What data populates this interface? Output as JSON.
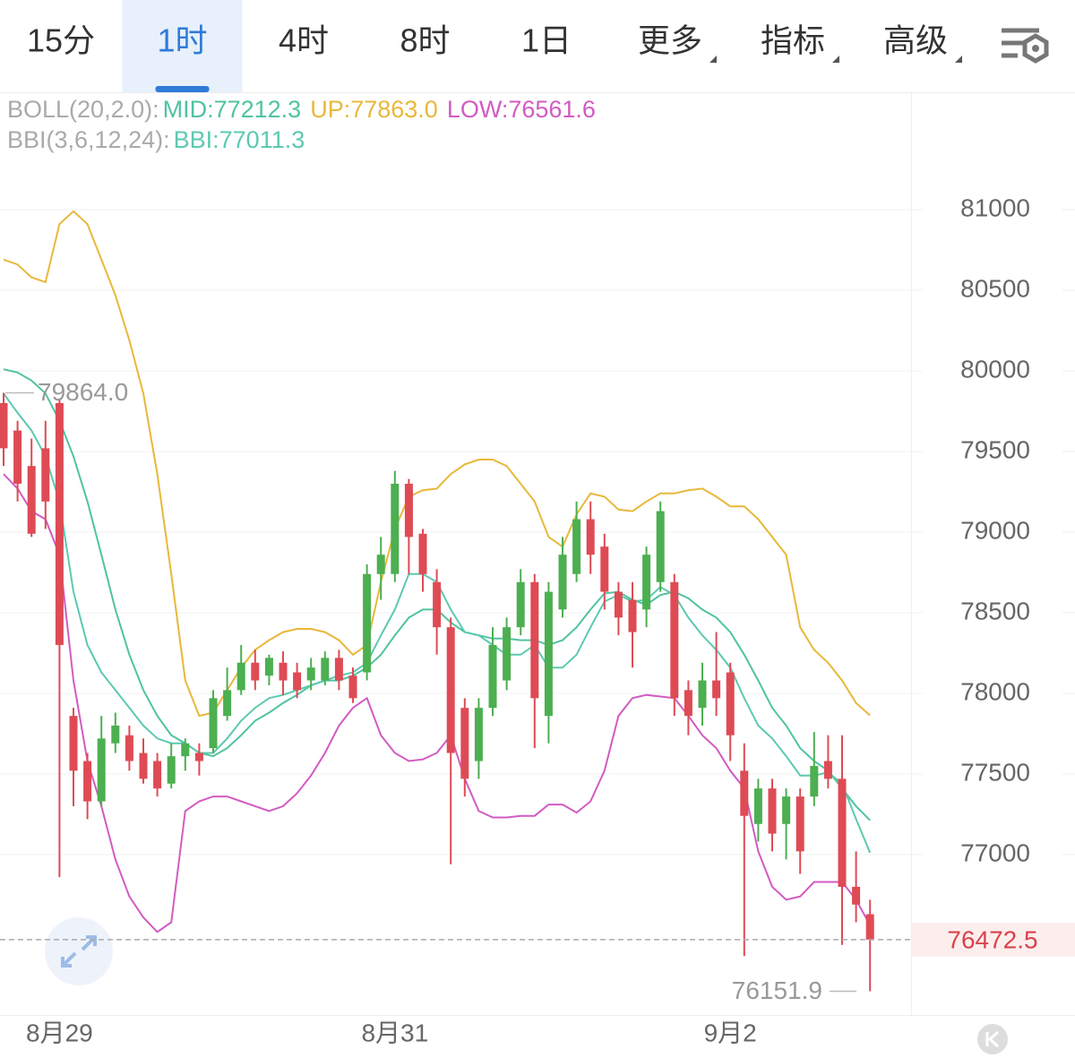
{
  "tabs": [
    {
      "label": "15分"
    },
    {
      "label": "1时",
      "active": true
    },
    {
      "label": "4时"
    },
    {
      "label": "8时"
    },
    {
      "label": "1日"
    },
    {
      "label": "更多",
      "dropdown": true
    },
    {
      "label": "指标",
      "dropdown": true
    },
    {
      "label": "高级",
      "dropdown": true
    }
  ],
  "chart_data": {
    "type": "candlestick",
    "categories": [
      null,
      null,
      null,
      null,
      "8月29",
      null,
      null,
      null,
      null,
      null,
      null,
      null,
      null,
      null,
      null,
      null,
      null,
      null,
      null,
      null,
      null,
      null,
      null,
      null,
      null,
      null,
      null,
      null,
      "8月31",
      null,
      null,
      null,
      null,
      null,
      null,
      null,
      null,
      null,
      null,
      null,
      null,
      null,
      null,
      null,
      null,
      null,
      null,
      null,
      null,
      null,
      null,
      null,
      "9月2",
      null,
      null,
      null,
      null,
      null,
      null,
      null,
      null,
      null,
      null
    ],
    "open": [
      79800,
      79630,
      79410,
      79520,
      79800,
      77860,
      77580,
      77330,
      77690,
      77740,
      77630,
      77580,
      77440,
      77610,
      77630,
      77660,
      77860,
      78020,
      78190,
      78110,
      78190,
      78130,
      78080,
      78080,
      78220,
      78110,
      78130,
      78740,
      78740,
      79300,
      78990,
      78690,
      78410,
      77910,
      77580,
      77910,
      78080,
      78410,
      78690,
      77860,
      78520,
      78740,
      79080,
      78910,
      78630,
      78580,
      78520,
      78690,
      78690,
      78020,
      77910,
      78080,
      78130,
      77520,
      77190,
      77410,
      77190,
      77360,
      77360,
      77580,
      77470,
      76800,
      76630
    ],
    "high": [
      79864,
      79690,
      79580,
      79690,
      79830,
      77910,
      77630,
      77860,
      77880,
      77800,
      77720,
      77630,
      77690,
      77720,
      77690,
      78020,
      78160,
      78300,
      78270,
      78240,
      78260,
      78190,
      78220,
      78260,
      78270,
      78160,
      78800,
      78970,
      79380,
      79330,
      79020,
      78770,
      78470,
      77970,
      77970,
      78410,
      78470,
      78770,
      78740,
      78690,
      78970,
      79190,
      79190,
      78990,
      78690,
      78690,
      78910,
      79190,
      78740,
      78080,
      78190,
      78380,
      78190,
      77690,
      77470,
      77470,
      77410,
      77410,
      77760,
      77740,
      77740,
      77020,
      76720
    ],
    "low": [
      79410,
      79190,
      78970,
      79020,
      76860,
      77300,
      77220,
      77300,
      77630,
      77520,
      77440,
      77360,
      77410,
      77520,
      77490,
      77630,
      77830,
      77990,
      78020,
      78050,
      77990,
      77970,
      78020,
      78050,
      78020,
      77940,
      78080,
      78580,
      78690,
      78740,
      78630,
      78240,
      76940,
      77360,
      77470,
      77860,
      78020,
      78360,
      77660,
      77690,
      78470,
      78690,
      78740,
      78520,
      78360,
      78160,
      78410,
      78630,
      77860,
      77740,
      77800,
      77860,
      77580,
      76370,
      77080,
      77020,
      76970,
      76880,
      77300,
      77410,
      76440,
      76580,
      76151.9
    ],
    "close": [
      79520,
      79300,
      78990,
      79190,
      78300,
      77520,
      77330,
      77720,
      77800,
      77580,
      77470,
      77410,
      77610,
      77690,
      77580,
      77970,
      78020,
      78190,
      78080,
      78220,
      78080,
      78020,
      78160,
      78220,
      78080,
      77970,
      78740,
      78860,
      79300,
      78970,
      78740,
      78410,
      77630,
      77470,
      77910,
      78300,
      78410,
      78690,
      77970,
      78630,
      78860,
      79080,
      78860,
      78630,
      78470,
      78380,
      78860,
      79130,
      77970,
      77860,
      78080,
      77970,
      77740,
      77240,
      77410,
      77130,
      77360,
      77020,
      77550,
      77470,
      76800,
      76690,
      76472.5
    ],
    "up_color": "#4caf50",
    "down_color": "#de4b55",
    "indicators": [
      {
        "title": "BOLL(20,2.0):",
        "series": [
          {
            "name": "MID:",
            "color": "#4fc3a1",
            "current": {
              "value": 77212.3,
              "label": "77212.3"
            },
            "values": [
              80010,
              79990,
              79940,
              79860,
              79690,
              79470,
              79190,
              78860,
              78520,
              78240,
              78020,
              77860,
              77740,
              77690,
              77630,
              77610,
              77660,
              77740,
              77830,
              77880,
              77940,
              77990,
              78050,
              78080,
              78080,
              78110,
              78160,
              78240,
              78360,
              78470,
              78520,
              78520,
              78440,
              78380,
              78360,
              78340,
              78340,
              78330,
              78330,
              78300,
              78330,
              78410,
              78520,
              78620,
              78630,
              78580,
              78550,
              78610,
              78630,
              78590,
              78520,
              78470,
              78380,
              78240,
              78080,
              77910,
              77800,
              77660,
              77580,
              77520,
              77410,
              77300,
              77212.3
            ]
          },
          {
            "name": "UP:",
            "color": "#e8b83a",
            "current": {
              "value": 77863,
              "label": "77863.0"
            },
            "values": [
              80690,
              80660,
              80580,
              80550,
              80910,
              80990,
              80910,
              80690,
              80470,
              80190,
              79860,
              79360,
              78740,
              78080,
              77860,
              77880,
              78020,
              78160,
              78270,
              78330,
              78380,
              78400,
              78400,
              78380,
              78330,
              78240,
              78300,
              78690,
              79020,
              79220,
              79260,
              79270,
              79360,
              79420,
              79450,
              79450,
              79410,
              79300,
              79190,
              78970,
              78910,
              79110,
              79240,
              79220,
              79140,
              79130,
              79190,
              79240,
              79240,
              79260,
              79270,
              79220,
              79160,
              79160,
              79080,
              78970,
              78860,
              78410,
              78270,
              78190,
              78080,
              77940,
              77863
            ]
          },
          {
            "name": "LOW:",
            "color": "#d25bc2",
            "current": {
              "value": 76561.6,
              "label": "76561.6"
            },
            "values": [
              79360,
              79270,
              79130,
              79080,
              78860,
              78080,
              77580,
              77300,
              76970,
              76740,
              76610,
              76520,
              76580,
              77270,
              77330,
              77360,
              77360,
              77330,
              77300,
              77270,
              77300,
              77380,
              77490,
              77630,
              77800,
              77910,
              77970,
              77740,
              77630,
              77580,
              77590,
              77630,
              77740,
              77470,
              77270,
              77230,
              77230,
              77240,
              77240,
              77310,
              77310,
              77260,
              77330,
              77520,
              77860,
              77970,
              77990,
              77980,
              77970,
              77860,
              77740,
              77660,
              77520,
              77410,
              77020,
              76800,
              76720,
              76740,
              76830,
              76830,
              76830,
              76720,
              76561.6
            ]
          }
        ]
      },
      {
        "title": "BBI(3,6,12,24):",
        "series": [
          {
            "name": "BBI:",
            "color": "#5cc9b0",
            "current": {
              "value": 77011.3,
              "label": "77011.3"
            },
            "values": [
              79860,
              79740,
              79630,
              79470,
              79190,
              78630,
              78300,
              78130,
              78020,
              77910,
              77800,
              77720,
              77690,
              77690,
              77630,
              77630,
              77720,
              77830,
              77910,
              77970,
              77990,
              78020,
              78050,
              78080,
              78110,
              78130,
              78190,
              78360,
              78520,
              78740,
              78740,
              78690,
              78520,
              78380,
              78360,
              78300,
              78240,
              78240,
              78300,
              78160,
              78160,
              78240,
              78410,
              78570,
              78610,
              78570,
              78580,
              78660,
              78610,
              78470,
              78360,
              78270,
              78160,
              77970,
              77800,
              77720,
              77610,
              77490,
              77490,
              77510,
              77440,
              77220,
              77011.3
            ]
          }
        ]
      }
    ],
    "ylim": [
      76005,
      81728
    ],
    "yticks": [
      77000,
      77500,
      78000,
      78500,
      79000,
      79500,
      80000,
      80500,
      81000
    ],
    "grid": true,
    "last_price": 76472.5,
    "high_label": {
      "value": 79864,
      "label": "79864.0"
    },
    "low_label": 76151.9
  }
}
